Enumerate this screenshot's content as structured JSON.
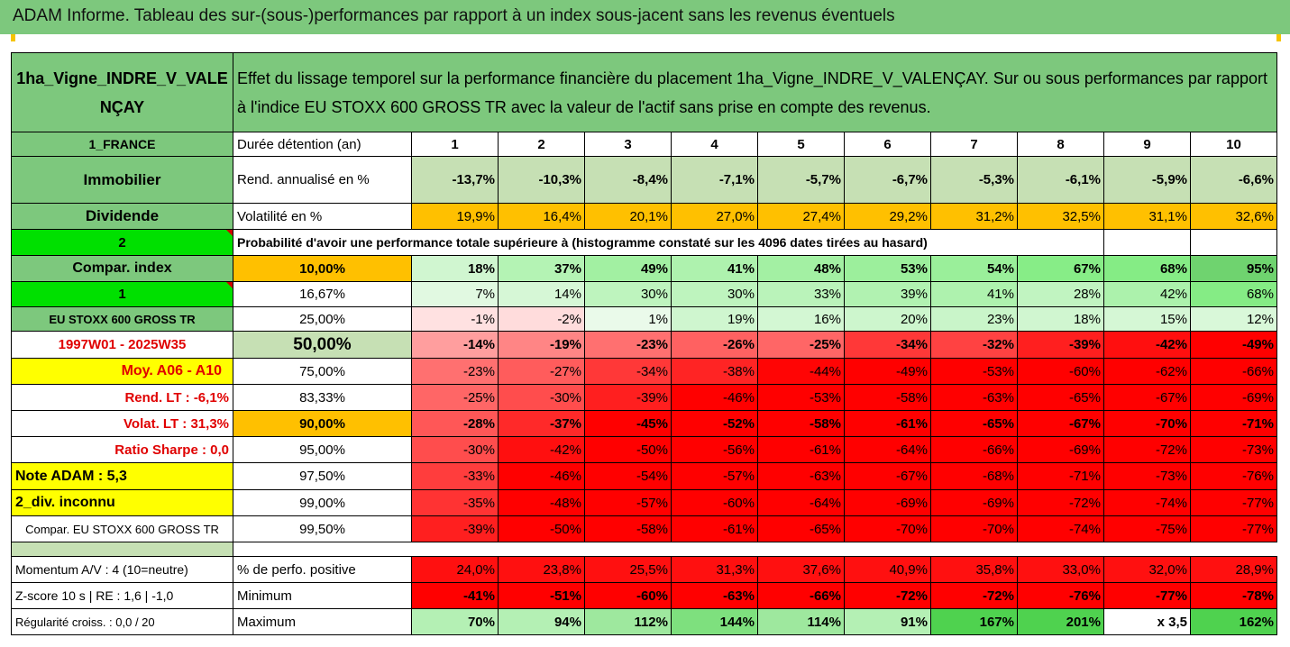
{
  "title": "ADAM Informe. Tableau des sur-(sous-)performances par rapport à un index sous-jacent sans les revenus éventuels",
  "asset": "1ha_Vigne_INDRE_V_VALENÇAY",
  "description": "Effet du lissage temporel sur la performance financière du placement 1ha_Vigne_INDRE_V_VALENÇAY. Sur ou sous performances par rapport à l'indice EU STOXX 600 GROSS TR avec la valeur de l'actif sans prise en compte des revenus.",
  "left": {
    "country": "1_FRANCE",
    "type": "Immobilier",
    "dividende": "Dividende",
    "num2": "2",
    "compar_index": "Compar. index",
    "num1": "1",
    "index_name": "EU STOXX 600 GROSS TR",
    "period": "1997W01 - 2025W35",
    "moy": "Moy. A06 - A10",
    "rend_lt": "Rend. LT :   -6,1%",
    "volat_lt": "Volat. LT :   31,3%",
    "sharpe": "Ratio Sharpe :   0,0",
    "note": "Note ADAM : 5,3",
    "div": "2_div. inconnu",
    "compar2": "Compar. EU STOXX 600 GROSS TR",
    "momentum": "Momentum A/V : 4 (10=neutre)",
    "zscore": "Z-score 10 s  |  RE : 1,6  |  -1,0",
    "regularite": "Régularité croiss. : 0,0 / 20"
  },
  "labels": {
    "duree": "Durée détention (an)",
    "rend": "Rend. annualisé en %",
    "volat": "Volatilité en %",
    "proba": "Probabilité d'avoir une performance totale supérieure à (histogramme constaté sur les 4096 dates tirées au hasard)",
    "perf_pos": "% de perfo. positive",
    "minimum": "Minimum",
    "maximum": "Maximum"
  },
  "years": [
    "1",
    "2",
    "3",
    "4",
    "5",
    "6",
    "7",
    "8",
    "9",
    "10"
  ],
  "rend": [
    "-13,7%",
    "-10,3%",
    "-8,4%",
    "-7,1%",
    "-5,7%",
    "-6,7%",
    "-5,3%",
    "-6,1%",
    "-5,9%",
    "-6,6%"
  ],
  "volat": [
    "19,9%",
    "16,4%",
    "20,1%",
    "27,0%",
    "27,4%",
    "29,2%",
    "31,2%",
    "32,5%",
    "31,1%",
    "32,6%"
  ],
  "proba_rows": [
    {
      "threshold": "10,00%",
      "values": [
        "18%",
        "37%",
        "49%",
        "41%",
        "48%",
        "53%",
        "54%",
        "67%",
        "68%",
        "95%"
      ]
    },
    {
      "threshold": "16,67%",
      "values": [
        "7%",
        "14%",
        "30%",
        "30%",
        "33%",
        "39%",
        "41%",
        "28%",
        "42%",
        "68%"
      ]
    },
    {
      "threshold": "25,00%",
      "values": [
        "-1%",
        "-2%",
        "1%",
        "19%",
        "16%",
        "20%",
        "23%",
        "18%",
        "15%",
        "12%"
      ]
    },
    {
      "threshold": "50,00%",
      "values": [
        "-14%",
        "-19%",
        "-23%",
        "-26%",
        "-25%",
        "-34%",
        "-32%",
        "-39%",
        "-42%",
        "-49%"
      ]
    },
    {
      "threshold": "75,00%",
      "values": [
        "-23%",
        "-27%",
        "-34%",
        "-38%",
        "-44%",
        "-49%",
        "-53%",
        "-60%",
        "-62%",
        "-66%"
      ]
    },
    {
      "threshold": "83,33%",
      "values": [
        "-25%",
        "-30%",
        "-39%",
        "-46%",
        "-53%",
        "-58%",
        "-63%",
        "-65%",
        "-67%",
        "-69%"
      ]
    },
    {
      "threshold": "90,00%",
      "values": [
        "-28%",
        "-37%",
        "-45%",
        "-52%",
        "-58%",
        "-61%",
        "-65%",
        "-67%",
        "-70%",
        "-71%"
      ]
    },
    {
      "threshold": "95,00%",
      "values": [
        "-30%",
        "-42%",
        "-50%",
        "-56%",
        "-61%",
        "-64%",
        "-66%",
        "-69%",
        "-72%",
        "-73%"
      ]
    },
    {
      "threshold": "97,50%",
      "values": [
        "-33%",
        "-46%",
        "-54%",
        "-57%",
        "-63%",
        "-67%",
        "-68%",
        "-71%",
        "-73%",
        "-76%"
      ]
    },
    {
      "threshold": "99,00%",
      "values": [
        "-35%",
        "-48%",
        "-57%",
        "-60%",
        "-64%",
        "-69%",
        "-69%",
        "-72%",
        "-74%",
        "-77%"
      ]
    },
    {
      "threshold": "99,50%",
      "values": [
        "-39%",
        "-50%",
        "-58%",
        "-61%",
        "-65%",
        "-70%",
        "-70%",
        "-74%",
        "-75%",
        "-77%"
      ]
    }
  ],
  "perf_pos": [
    "24,0%",
    "23,8%",
    "25,5%",
    "31,3%",
    "37,6%",
    "40,9%",
    "35,8%",
    "33,0%",
    "32,0%",
    "28,9%"
  ],
  "minimum": [
    "-41%",
    "-51%",
    "-60%",
    "-63%",
    "-66%",
    "-72%",
    "-72%",
    "-76%",
    "-77%",
    "-78%"
  ],
  "maximum": [
    "70%",
    "94%",
    "112%",
    "144%",
    "114%",
    "91%",
    "167%",
    "201%",
    "x 3,5",
    "162%"
  ],
  "colors": {
    "header_green": "#7dc87d",
    "light_green": "#c6e0b4",
    "bright_green": "#00e000",
    "yellow": "#ffff00",
    "orange": "#ffc000",
    "red": "#ff0000"
  }
}
